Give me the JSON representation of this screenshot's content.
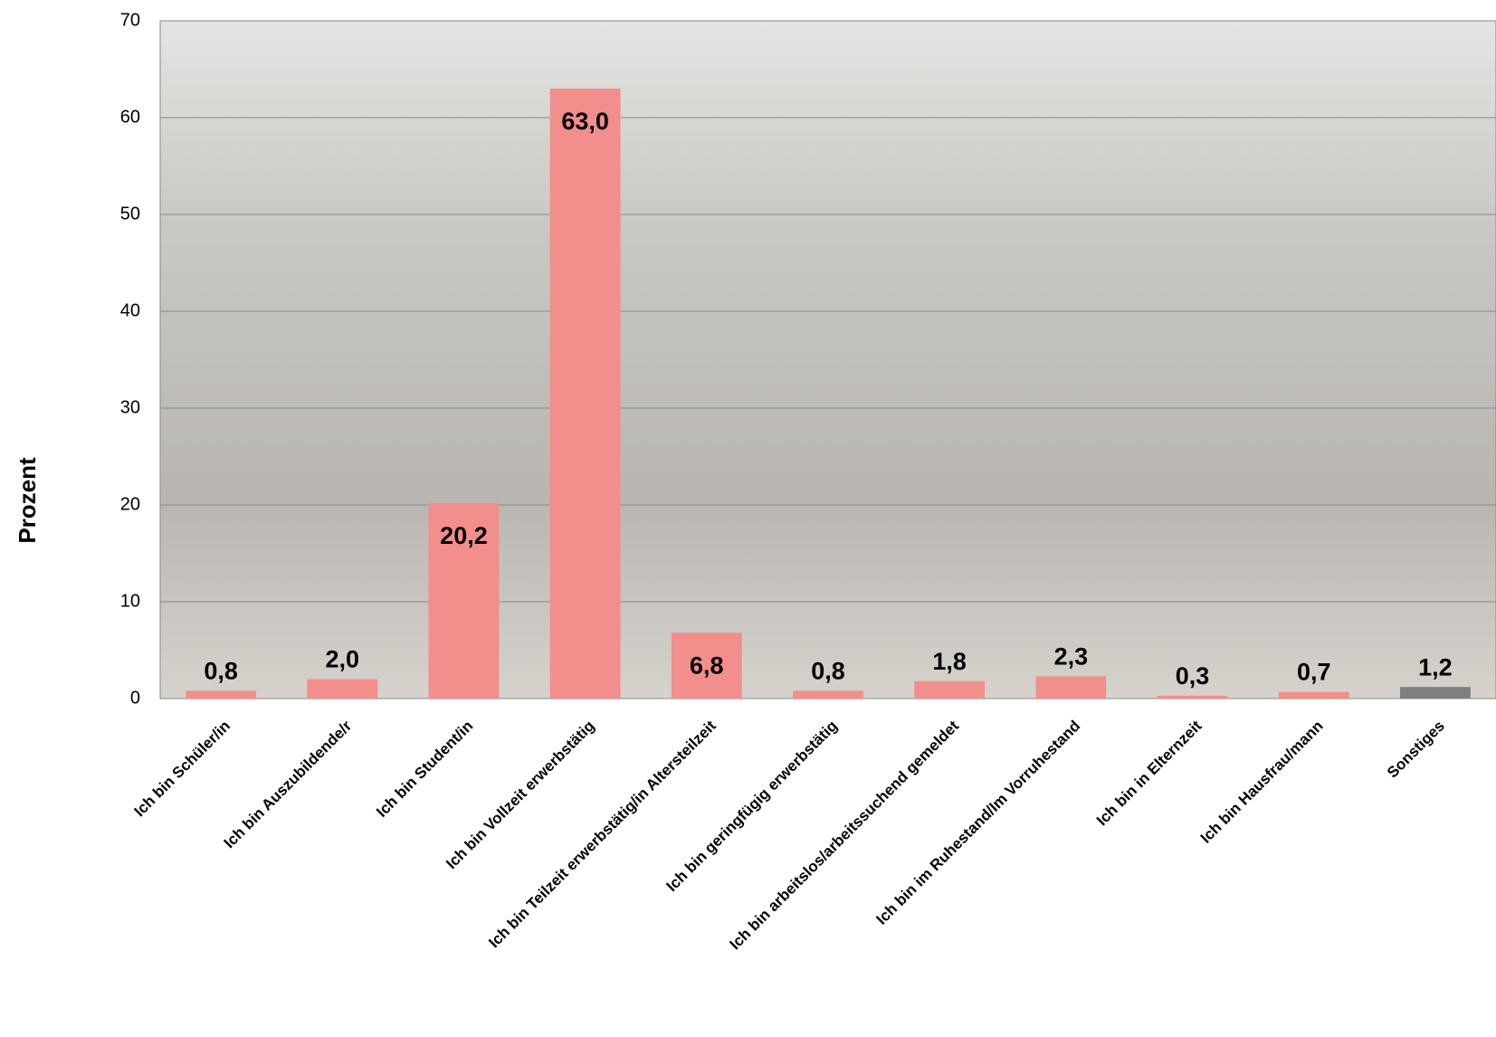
{
  "chart_data": {
    "type": "bar",
    "y_label": "Prozent",
    "categories": [
      "Ich bin Schüler/in",
      "Ich bin Auszubildende/r",
      "Ich bin Student/in",
      "Ich bin Vollzeit erwerbstätig",
      "Ich bin Teilzeit erwerbstätig/in Altersteilzeit",
      "Ich bin geringfügig erwerbstätig",
      "Ich bin arbeitslos/arbeitssuchend gemeldet",
      "Ich bin im Ruhestand/Im Vorruhestand",
      "Ich bin in Elternzeit",
      "Ich bin Hausfrau/mann",
      "Sonstiges"
    ],
    "values": [
      0.8,
      2.0,
      20.2,
      63.0,
      6.8,
      0.8,
      1.8,
      2.3,
      0.3,
      0.7,
      1.2
    ],
    "value_labels": [
      "0,8",
      "2,0",
      "20,2",
      "63,0",
      "6,8",
      "0,8",
      "1,8",
      "2,3",
      "0,3",
      "0,7",
      "1,2"
    ],
    "colors": [
      "#f28e8c",
      "#f28e8c",
      "#f28e8c",
      "#f28e8c",
      "#f28e8c",
      "#f28e8c",
      "#f28e8c",
      "#f28e8c",
      "#f28e8c",
      "#f28e8c",
      "#7f7f7f"
    ],
    "ylim": [
      0,
      70
    ],
    "yticks": [
      0,
      10,
      20,
      30,
      40,
      50,
      60,
      70
    ],
    "grid": true
  }
}
